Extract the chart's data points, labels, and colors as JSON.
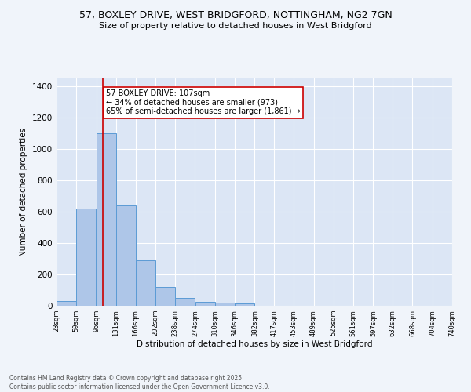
{
  "title_line1": "57, BOXLEY DRIVE, WEST BRIDGFORD, NOTTINGHAM, NG2 7GN",
  "title_line2": "Size of property relative to detached houses in West Bridgford",
  "xlabel": "Distribution of detached houses by size in West Bridgford",
  "ylabel": "Number of detached properties",
  "bar_left_edges": [
    23,
    59,
    95,
    131,
    166,
    202,
    238,
    274,
    310,
    346,
    382,
    417,
    453,
    489,
    525,
    561,
    597,
    632,
    668,
    704
  ],
  "bar_heights": [
    30,
    620,
    1100,
    640,
    290,
    120,
    50,
    25,
    20,
    15,
    0,
    0,
    0,
    0,
    0,
    0,
    0,
    0,
    0,
    0
  ],
  "bin_width": 36,
  "xtick_labels": [
    "23sqm",
    "59sqm",
    "95sqm",
    "131sqm",
    "166sqm",
    "202sqm",
    "238sqm",
    "274sqm",
    "310sqm",
    "346sqm",
    "382sqm",
    "417sqm",
    "453sqm",
    "489sqm",
    "525sqm",
    "561sqm",
    "597sqm",
    "632sqm",
    "668sqm",
    "704sqm",
    "740sqm"
  ],
  "ylim": [
    0,
    1450
  ],
  "yticks": [
    0,
    200,
    400,
    600,
    800,
    1000,
    1200,
    1400
  ],
  "bar_color": "#aec6e8",
  "bar_edge_color": "#5b9bd5",
  "property_line_x": 107,
  "property_line_color": "#cc0000",
  "annotation_text": "57 BOXLEY DRIVE: 107sqm\n← 34% of detached houses are smaller (973)\n65% of semi-detached houses are larger (1,861) →",
  "annotation_box_color": "#ffffff",
  "annotation_box_edge": "#cc0000",
  "background_color": "#dce6f5",
  "grid_color": "#ffffff",
  "fig_background": "#f0f4fa",
  "footer_line1": "Contains HM Land Registry data © Crown copyright and database right 2025.",
  "footer_line2": "Contains public sector information licensed under the Open Government Licence v3.0."
}
